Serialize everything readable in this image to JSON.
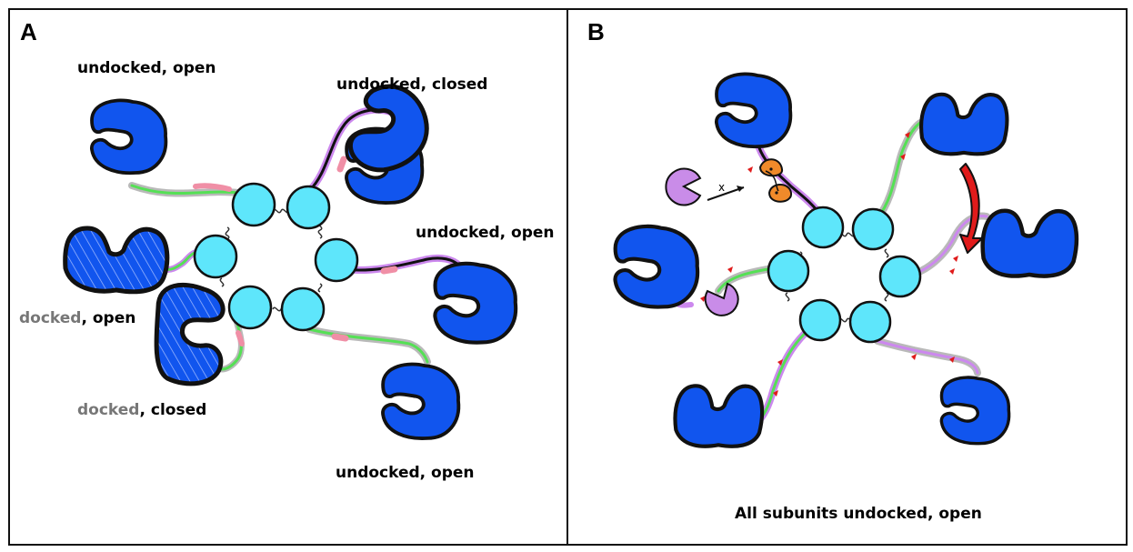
{
  "panels": [
    {
      "letter": "A",
      "labels": {
        "top_left": "undocked, open",
        "top_right": "undocked, closed",
        "right": "undocked, open",
        "bottom_right": "undocked, open",
        "left_docked_word": "docked",
        "left_rest": ", open",
        "bottom_left_docked_word": "docked",
        "bottom_left_rest": ", closed"
      }
    },
    {
      "letter": "B",
      "caption": "All subunits undocked, open",
      "inhibitor_marker": "x"
    }
  ],
  "colors": {
    "domain": "#1155ee",
    "hub": "#5ee6fb",
    "linker_gray": "#b9b9b9",
    "linker_green": "#55e055",
    "linker_purple": "#cc88ee",
    "linker_pink": "#f08fa6",
    "ligand_purple": "#c98ce8",
    "ligand_orange": "#f08a2a",
    "arrow_red": "#e01b1b",
    "muted_text": "#777777"
  }
}
